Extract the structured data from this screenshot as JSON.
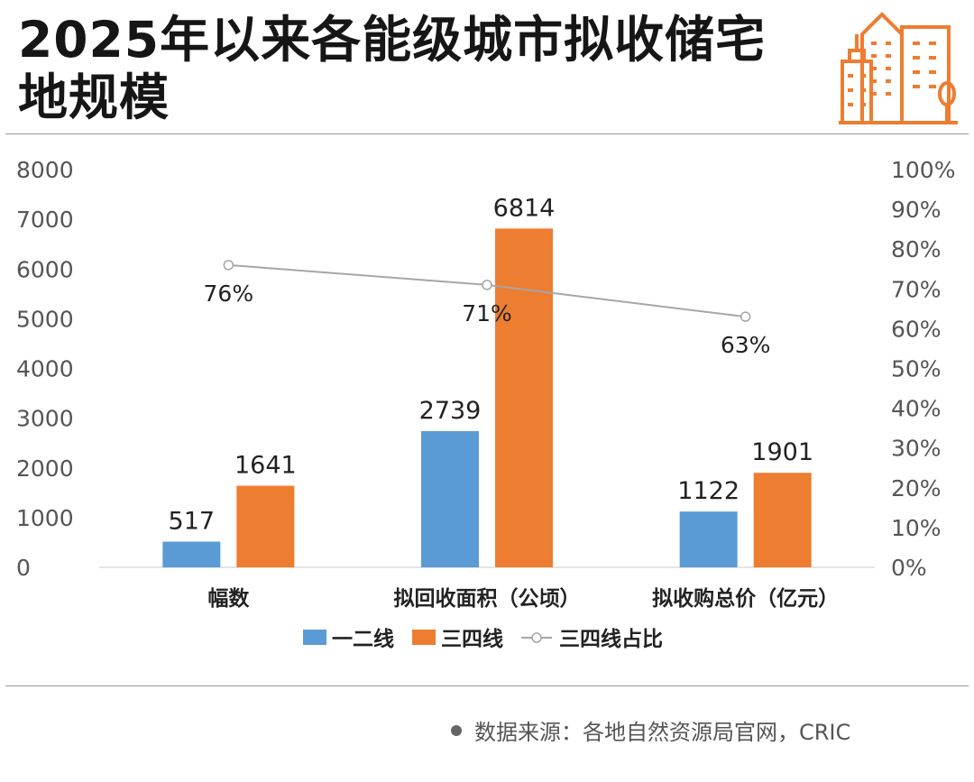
{
  "title": "2025年以来各能级城市拟收储宅地规模",
  "logo_icon": "city-buildings-icon",
  "source": "数据来源：各地自然资源局官网，CRIC",
  "colors": {
    "series1": "#5b9bd5",
    "series2": "#ed7d31",
    "ratio_line": "#a6a6a6",
    "axis_text": "#555555"
  },
  "chart_data": {
    "type": "bar",
    "categories": [
      "幅数",
      "拟回收面积（公顷）",
      "拟收购总价（亿元）"
    ],
    "series": [
      {
        "name": "一二线",
        "type": "bar",
        "axis": "left",
        "values": [
          517,
          2739,
          1122
        ]
      },
      {
        "name": "三四线",
        "type": "bar",
        "axis": "left",
        "values": [
          1641,
          6814,
          1901
        ]
      },
      {
        "name": "三四线占比",
        "type": "line",
        "axis": "right",
        "values": [
          76,
          71,
          63
        ],
        "labels": [
          "76%",
          "71%",
          "63%"
        ]
      }
    ],
    "ylim": [
      0,
      8000
    ],
    "yticks": [
      "0",
      "1000",
      "2000",
      "3000",
      "4000",
      "5000",
      "6000",
      "7000",
      "8000"
    ],
    "y2lim": [
      0,
      100
    ],
    "y2ticks": [
      "0%",
      "10%",
      "20%",
      "30%",
      "40%",
      "50%",
      "60%",
      "70%",
      "80%",
      "90%",
      "100%"
    ],
    "legend_position": "bottom",
    "grid": false
  }
}
